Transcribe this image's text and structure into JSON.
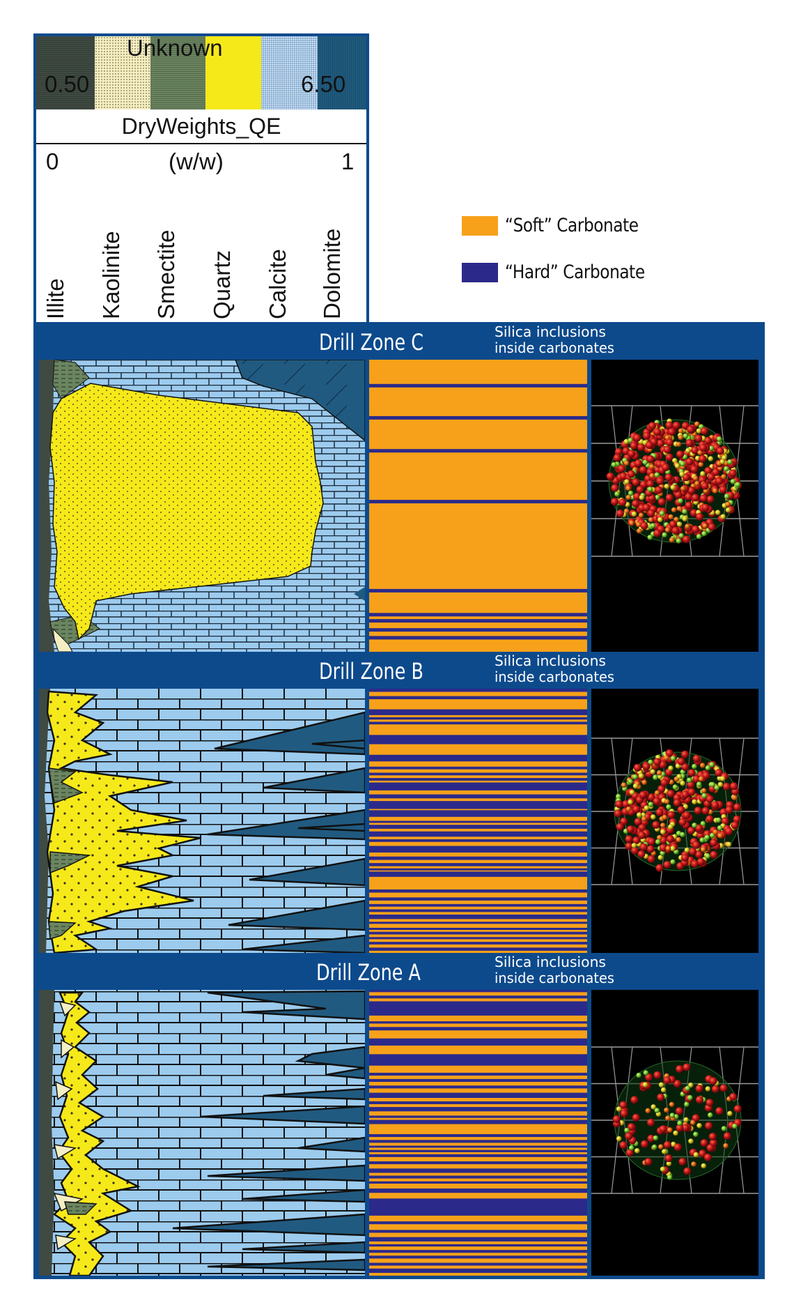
{
  "legend": {
    "unknown_label": "Unknown",
    "min_value": "0.50",
    "max_value": "6.50",
    "curve_title": "DryWeights_QE",
    "scale_min": "0",
    "scale_unit": "(w/w)",
    "scale_max": "1",
    "minerals": [
      {
        "name": "Illite",
        "color": "#3f4a42"
      },
      {
        "name": "Kaolinite",
        "color": "#f4eec4"
      },
      {
        "name": "Smectite",
        "color": "#6b8560"
      },
      {
        "name": "Quartz",
        "color": "#f6e91a"
      },
      {
        "name": "Calcite",
        "color": "#9ccbee"
      },
      {
        "name": "Dolomite",
        "color": "#1f5a7e"
      }
    ]
  },
  "carbonate_legend": {
    "soft": {
      "label": "“Soft” Carbonate",
      "color": "#f7a11a"
    },
    "hard": {
      "label": "“Hard” Carbonate",
      "color": "#2b2a8a"
    }
  },
  "zones": [
    {
      "title": "Drill Zone C",
      "subtitle_line1": "Silica inclusions",
      "subtitle_line2": "inside carbonates",
      "hard_bands": [
        [
          0.083,
          0.095
        ],
        [
          0.193,
          0.205
        ],
        [
          0.306,
          0.318
        ],
        [
          0.48,
          0.492
        ],
        [
          0.785,
          0.797
        ],
        [
          0.867,
          0.879
        ],
        [
          0.888,
          0.9
        ],
        [
          0.919,
          0.931
        ],
        [
          0.946,
          0.958
        ]
      ],
      "sphere_density": "high"
    },
    {
      "title": "Drill Zone B",
      "subtitle_line1": "Silica inclusions",
      "subtitle_line2": "inside carbonates",
      "hard_bands": [
        [
          0.0,
          0.012
        ],
        [
          0.028,
          0.04
        ],
        [
          0.078,
          0.1
        ],
        [
          0.108,
          0.117
        ],
        [
          0.125,
          0.135
        ],
        [
          0.175,
          0.21
        ],
        [
          0.25,
          0.275
        ],
        [
          0.295,
          0.305
        ],
        [
          0.318,
          0.328
        ],
        [
          0.338,
          0.348
        ],
        [
          0.355,
          0.385
        ],
        [
          0.4,
          0.415
        ],
        [
          0.425,
          0.455
        ],
        [
          0.46,
          0.485
        ],
        [
          0.5,
          0.505
        ],
        [
          0.515,
          0.53
        ],
        [
          0.54,
          0.56
        ],
        [
          0.57,
          0.58
        ],
        [
          0.595,
          0.62
        ],
        [
          0.635,
          0.648
        ],
        [
          0.66,
          0.672
        ],
        [
          0.68,
          0.688
        ],
        [
          0.692,
          0.712
        ],
        [
          0.76,
          0.772
        ],
        [
          0.79,
          0.802
        ],
        [
          0.815,
          0.825
        ],
        [
          0.835,
          0.845
        ],
        [
          0.855,
          0.872
        ],
        [
          0.882,
          0.89
        ],
        [
          0.905,
          0.912
        ],
        [
          0.92,
          0.93
        ],
        [
          0.94,
          0.948
        ],
        [
          0.958,
          0.968
        ],
        [
          0.98,
          0.992
        ]
      ],
      "sphere_density": "medium"
    },
    {
      "title": "Drill Zone A",
      "subtitle_line1": "Silica inclusions",
      "subtitle_line2": "inside carbonates",
      "hard_bands": [
        [
          0.0,
          0.008
        ],
        [
          0.02,
          0.03
        ],
        [
          0.04,
          0.09
        ],
        [
          0.11,
          0.118
        ],
        [
          0.13,
          0.142
        ],
        [
          0.17,
          0.195
        ],
        [
          0.225,
          0.265
        ],
        [
          0.29,
          0.3
        ],
        [
          0.312,
          0.322
        ],
        [
          0.335,
          0.345
        ],
        [
          0.36,
          0.378
        ],
        [
          0.39,
          0.4
        ],
        [
          0.41,
          0.425
        ],
        [
          0.44,
          0.448
        ],
        [
          0.455,
          0.47
        ],
        [
          0.505,
          0.515
        ],
        [
          0.525,
          0.535
        ],
        [
          0.545,
          0.552
        ],
        [
          0.56,
          0.568
        ],
        [
          0.575,
          0.585
        ],
        [
          0.6,
          0.61
        ],
        [
          0.625,
          0.64
        ],
        [
          0.65,
          0.66
        ],
        [
          0.67,
          0.678
        ],
        [
          0.695,
          0.71
        ],
        [
          0.73,
          0.79
        ],
        [
          0.81,
          0.82
        ],
        [
          0.84,
          0.85
        ],
        [
          0.865,
          0.88
        ],
        [
          0.89,
          0.898
        ],
        [
          0.91,
          0.92
        ],
        [
          0.93,
          0.94
        ],
        [
          0.955,
          0.965
        ],
        [
          0.975,
          0.99
        ]
      ],
      "sphere_density": "low"
    }
  ]
}
